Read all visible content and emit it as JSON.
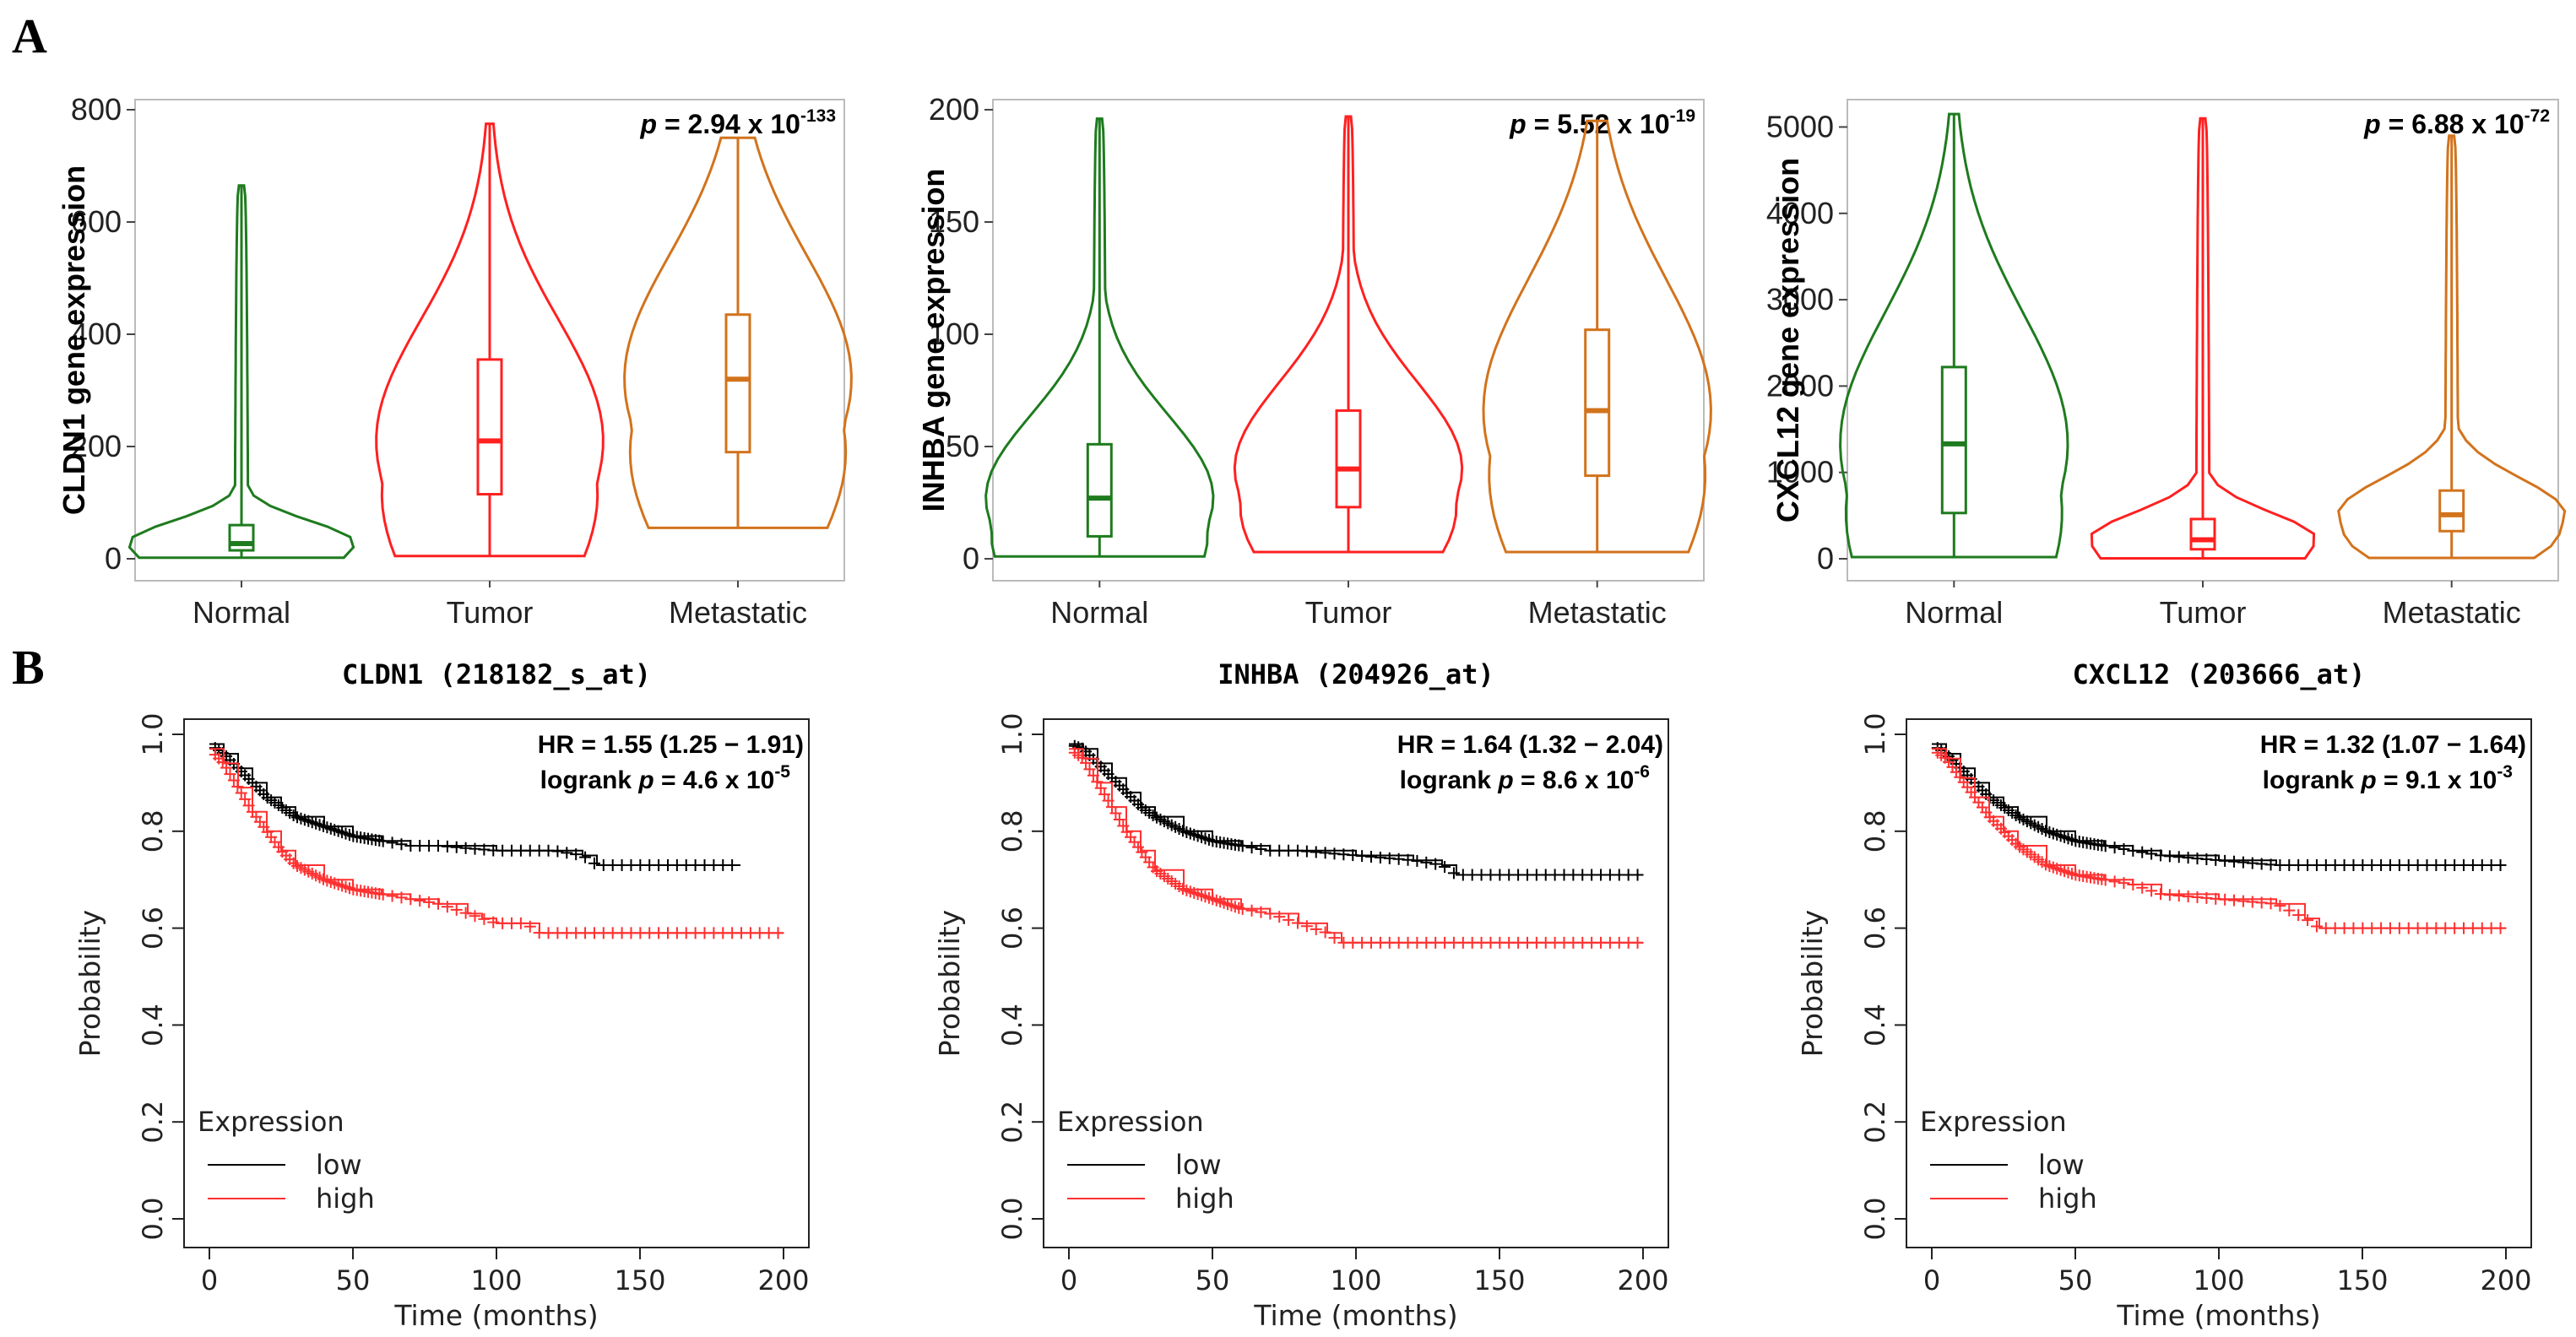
{
  "panels": {
    "a_label": "A",
    "b_label": "B"
  },
  "colors": {
    "normal": "#1e7b1e",
    "tumor": "#ff2020",
    "metastatic": "#d2731c",
    "km_low": "#000000",
    "km_high": "#ff3030",
    "frame": "#bbbbbb"
  },
  "chart_data": [
    {
      "type": "violin",
      "id": "violin-cldn1",
      "ylabel": "CLDN1 gene expression",
      "categories": [
        "Normal",
        "Tumor",
        "Metastatic"
      ],
      "ylim": [
        0,
        800
      ],
      "yticks": [
        0,
        200,
        400,
        600,
        800
      ],
      "pvalue": {
        "prefix": "p",
        "text": " = 2.94 x 10",
        "exp": "-133"
      },
      "groups": [
        {
          "name": "Normal",
          "min": 2,
          "q1": 15,
          "median": 27,
          "q3": 60,
          "max": 665
        },
        {
          "name": "Tumor",
          "min": 5,
          "q1": 115,
          "median": 210,
          "q3": 355,
          "max": 775
        },
        {
          "name": "Metastatic",
          "min": 55,
          "q1": 190,
          "median": 320,
          "q3": 435,
          "max": 750
        }
      ]
    },
    {
      "type": "violin",
      "id": "violin-inhba",
      "ylabel": "INHBA gene expression",
      "categories": [
        "Normal",
        "Tumor",
        "Metastatic"
      ],
      "ylim": [
        0,
        200
      ],
      "yticks": [
        0,
        50,
        100,
        150,
        200
      ],
      "pvalue": {
        "prefix": "p",
        "text": " = 5.52 x 10",
        "exp": "-19"
      },
      "groups": [
        {
          "name": "Normal",
          "min": 1,
          "q1": 10,
          "median": 27,
          "q3": 51,
          "max": 196
        },
        {
          "name": "Tumor",
          "min": 3,
          "q1": 23,
          "median": 40,
          "q3": 66,
          "max": 197
        },
        {
          "name": "Metastatic",
          "min": 3,
          "q1": 37,
          "median": 66,
          "q3": 102,
          "max": 195
        }
      ]
    },
    {
      "type": "violin",
      "id": "violin-cxcl12",
      "ylabel": "CXCL12 gene expression",
      "categories": [
        "Normal",
        "Tumor",
        "Metastatic"
      ],
      "ylim": [
        0,
        5200
      ],
      "yticks": [
        0,
        1000,
        2000,
        3000,
        4000,
        5000
      ],
      "pvalue": {
        "prefix": "p",
        "text": " = 6.88 x 10",
        "exp": "-72"
      },
      "groups": [
        {
          "name": "Normal",
          "min": 20,
          "q1": 530,
          "median": 1330,
          "q3": 2220,
          "max": 5150
        },
        {
          "name": "Tumor",
          "min": 5,
          "q1": 110,
          "median": 220,
          "q3": 460,
          "max": 5100
        },
        {
          "name": "Metastatic",
          "min": 10,
          "q1": 320,
          "median": 510,
          "q3": 790,
          "max": 4900
        }
      ]
    },
    {
      "type": "line",
      "id": "km-cldn1",
      "title": "CLDN1 (218182_s_at)",
      "xlabel": "Time (months)",
      "ylabel": "Probability",
      "xlim": [
        0,
        200
      ],
      "ylim": [
        0,
        1
      ],
      "xticks": [
        0,
        50,
        100,
        150,
        200
      ],
      "yticks": [
        "0.0",
        "0.2",
        "0.4",
        "0.6",
        "0.8",
        "1.0"
      ],
      "hr": "HR = 1.55 (1.25 − 1.91)",
      "logrank": {
        "label": "logrank ",
        "p": "p",
        "text": " = 4.6 x 10",
        "exp": "-5"
      },
      "legend": {
        "title": "Expression",
        "low": "low",
        "high": "high"
      },
      "series": [
        {
          "name": "low",
          "x": [
            0,
            5,
            10,
            15,
            20,
            25,
            30,
            40,
            50,
            60,
            70,
            80,
            100,
            120,
            130,
            135,
            150,
            185
          ],
          "y": [
            0.98,
            0.96,
            0.93,
            0.9,
            0.87,
            0.85,
            0.83,
            0.81,
            0.79,
            0.78,
            0.77,
            0.77,
            0.76,
            0.76,
            0.75,
            0.73,
            0.73,
            0.73
          ]
        },
        {
          "name": "high",
          "x": [
            0,
            5,
            10,
            15,
            20,
            25,
            30,
            40,
            50,
            60,
            70,
            80,
            90,
            95,
            100,
            110,
            115,
            200
          ],
          "y": [
            0.97,
            0.94,
            0.89,
            0.84,
            0.8,
            0.76,
            0.73,
            0.7,
            0.68,
            0.67,
            0.66,
            0.65,
            0.63,
            0.62,
            0.61,
            0.61,
            0.59,
            0.59
          ]
        }
      ]
    },
    {
      "type": "line",
      "id": "km-inhba",
      "title": "INHBA (204926_at)",
      "xlabel": "Time (months)",
      "ylabel": "Probability",
      "xlim": [
        0,
        200
      ],
      "ylim": [
        0,
        1
      ],
      "xticks": [
        0,
        50,
        100,
        150,
        200
      ],
      "yticks": [
        "0.0",
        "0.2",
        "0.4",
        "0.6",
        "0.8",
        "1.0"
      ],
      "hr": "HR = 1.64 (1.32 − 2.04)",
      "logrank": {
        "label": "logrank ",
        "p": "p",
        "text": " = 8.6 x 10",
        "exp": "-6"
      },
      "legend": {
        "title": "Expression",
        "low": "low",
        "high": "high"
      },
      "series": [
        {
          "name": "low",
          "x": [
            0,
            5,
            10,
            15,
            20,
            25,
            30,
            40,
            50,
            60,
            70,
            80,
            100,
            120,
            130,
            135,
            200
          ],
          "y": [
            0.98,
            0.97,
            0.94,
            0.91,
            0.88,
            0.85,
            0.83,
            0.8,
            0.78,
            0.77,
            0.76,
            0.76,
            0.75,
            0.74,
            0.73,
            0.71,
            0.71
          ]
        },
        {
          "name": "high",
          "x": [
            0,
            5,
            10,
            15,
            20,
            25,
            30,
            40,
            50,
            60,
            70,
            80,
            90,
            95,
            100,
            200
          ],
          "y": [
            0.97,
            0.95,
            0.9,
            0.85,
            0.8,
            0.76,
            0.72,
            0.68,
            0.66,
            0.64,
            0.63,
            0.61,
            0.59,
            0.57,
            0.57,
            0.57
          ]
        }
      ]
    },
    {
      "type": "line",
      "id": "km-cxcl12",
      "title": "CXCL12 (203666_at)",
      "xlabel": "Time (months)",
      "ylabel": "Probability",
      "xlim": [
        0,
        200
      ],
      "ylim": [
        0,
        1
      ],
      "xticks": [
        0,
        50,
        100,
        150,
        200
      ],
      "yticks": [
        "0.0",
        "0.2",
        "0.4",
        "0.6",
        "0.8",
        "1.0"
      ],
      "hr": "HR = 1.32 (1.07 − 1.64)",
      "logrank": {
        "label": "logrank ",
        "p": "p",
        "text": " = 9.1 x 10",
        "exp": "-3"
      },
      "legend": {
        "title": "Expression",
        "low": "low",
        "high": "high"
      },
      "series": [
        {
          "name": "low",
          "x": [
            0,
            5,
            10,
            15,
            20,
            25,
            30,
            40,
            50,
            60,
            70,
            80,
            100,
            120,
            200
          ],
          "y": [
            0.98,
            0.96,
            0.93,
            0.9,
            0.87,
            0.85,
            0.83,
            0.8,
            0.78,
            0.77,
            0.76,
            0.75,
            0.74,
            0.73,
            0.73
          ]
        },
        {
          "name": "high",
          "x": [
            0,
            5,
            10,
            15,
            20,
            25,
            30,
            40,
            50,
            60,
            70,
            80,
            100,
            120,
            130,
            135,
            200
          ],
          "y": [
            0.97,
            0.95,
            0.91,
            0.87,
            0.83,
            0.8,
            0.77,
            0.73,
            0.71,
            0.7,
            0.69,
            0.67,
            0.66,
            0.65,
            0.62,
            0.6,
            0.6
          ]
        }
      ]
    }
  ]
}
